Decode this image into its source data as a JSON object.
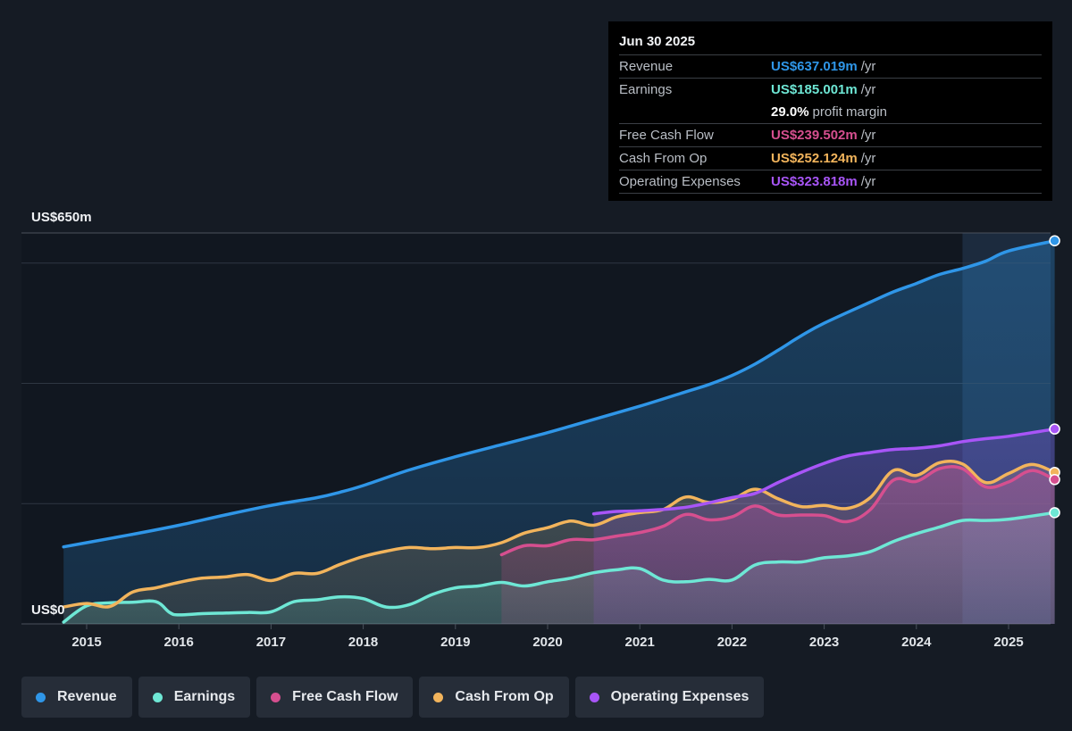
{
  "tooltip": {
    "date": "Jun 30 2025",
    "rows": [
      {
        "label": "Revenue",
        "value": "US$637.019m",
        "unit": "/yr",
        "color": "#2f96e8"
      },
      {
        "label": "Earnings",
        "value": "US$185.001m",
        "unit": "/yr",
        "color": "#6ee7d5"
      },
      {
        "label": "",
        "value": "29.0%",
        "unit": "profit margin",
        "color": "#ffffff"
      },
      {
        "label": "Free Cash Flow",
        "value": "US$239.502m",
        "unit": "/yr",
        "color": "#d64f8f"
      },
      {
        "label": "Cash From Op",
        "value": "US$252.124m",
        "unit": "/yr",
        "color": "#f2b45c"
      },
      {
        "label": "Operating Expenses",
        "value": "US$323.818m",
        "unit": "/yr",
        "color": "#a855f7"
      }
    ]
  },
  "legend": [
    {
      "label": "Revenue",
      "color": "#2f96e8"
    },
    {
      "label": "Earnings",
      "color": "#6ee7d5"
    },
    {
      "label": "Free Cash Flow",
      "color": "#d64f8f"
    },
    {
      "label": "Cash From Op",
      "color": "#f2b45c"
    },
    {
      "label": "Operating Expenses",
      "color": "#a855f7"
    }
  ],
  "chart_data": {
    "type": "area",
    "ylabel_top": "US$650m",
    "ylabel_bottom": "US$0",
    "ylim": [
      0,
      650
    ],
    "xlim": [
      2014.4,
      2025.5
    ],
    "xticks": [
      "2015",
      "2016",
      "2017",
      "2018",
      "2019",
      "2020",
      "2021",
      "2022",
      "2023",
      "2024",
      "2025"
    ],
    "forecast_start": 2024.5,
    "series": [
      {
        "name": "Revenue",
        "color": "#2f96e8",
        "points": [
          [
            2014.75,
            128
          ],
          [
            2015.0,
            135
          ],
          [
            2015.5,
            149
          ],
          [
            2016.0,
            164
          ],
          [
            2016.5,
            181
          ],
          [
            2017.0,
            197
          ],
          [
            2017.5,
            210
          ],
          [
            2017.75,
            219
          ],
          [
            2018.0,
            230
          ],
          [
            2018.5,
            256
          ],
          [
            2019.0,
            278
          ],
          [
            2019.5,
            298
          ],
          [
            2020.0,
            318
          ],
          [
            2020.5,
            340
          ],
          [
            2021.0,
            362
          ],
          [
            2021.5,
            386
          ],
          [
            2021.75,
            398
          ],
          [
            2022.0,
            413
          ],
          [
            2022.25,
            432
          ],
          [
            2022.5,
            455
          ],
          [
            2022.75,
            479
          ],
          [
            2023.0,
            500
          ],
          [
            2023.5,
            535
          ],
          [
            2023.75,
            552
          ],
          [
            2024.0,
            566
          ],
          [
            2024.25,
            581
          ],
          [
            2024.5,
            591
          ],
          [
            2024.75,
            603
          ],
          [
            2025.0,
            620
          ],
          [
            2025.5,
            637
          ]
        ]
      },
      {
        "name": "Earnings",
        "color": "#6ee7d5",
        "points": [
          [
            2014.75,
            3
          ],
          [
            2015.0,
            30
          ],
          [
            2015.25,
            35
          ],
          [
            2015.5,
            36
          ],
          [
            2015.75,
            37
          ],
          [
            2015.9,
            19
          ],
          [
            2016.0,
            15
          ],
          [
            2016.25,
            17
          ],
          [
            2016.5,
            18
          ],
          [
            2016.75,
            19
          ],
          [
            2017.0,
            20
          ],
          [
            2017.25,
            37
          ],
          [
            2017.5,
            40
          ],
          [
            2017.75,
            45
          ],
          [
            2018.0,
            42
          ],
          [
            2018.25,
            28
          ],
          [
            2018.5,
            32
          ],
          [
            2018.75,
            49
          ],
          [
            2019.0,
            60
          ],
          [
            2019.25,
            63
          ],
          [
            2019.5,
            69
          ],
          [
            2019.75,
            63
          ],
          [
            2020.0,
            70
          ],
          [
            2020.25,
            76
          ],
          [
            2020.5,
            85
          ],
          [
            2020.75,
            90
          ],
          [
            2021.0,
            92
          ],
          [
            2021.25,
            73
          ],
          [
            2021.5,
            70
          ],
          [
            2021.75,
            74
          ],
          [
            2022.0,
            73
          ],
          [
            2022.25,
            98
          ],
          [
            2022.5,
            103
          ],
          [
            2022.75,
            103
          ],
          [
            2023.0,
            110
          ],
          [
            2023.25,
            113
          ],
          [
            2023.5,
            120
          ],
          [
            2023.75,
            137
          ],
          [
            2024.0,
            150
          ],
          [
            2024.25,
            161
          ],
          [
            2024.5,
            172
          ],
          [
            2024.75,
            172
          ],
          [
            2025.0,
            174
          ],
          [
            2025.5,
            185
          ]
        ]
      },
      {
        "name": "Cash From Op",
        "color": "#f2b45c",
        "points": [
          [
            2014.75,
            28
          ],
          [
            2015.0,
            34
          ],
          [
            2015.25,
            29
          ],
          [
            2015.5,
            53
          ],
          [
            2015.75,
            60
          ],
          [
            2016.0,
            69
          ],
          [
            2016.25,
            76
          ],
          [
            2016.5,
            78
          ],
          [
            2016.75,
            82
          ],
          [
            2017.0,
            72
          ],
          [
            2017.25,
            84
          ],
          [
            2017.5,
            84
          ],
          [
            2017.75,
            99
          ],
          [
            2018.0,
            112
          ],
          [
            2018.25,
            121
          ],
          [
            2018.5,
            127
          ],
          [
            2018.75,
            125
          ],
          [
            2019.0,
            127
          ],
          [
            2019.25,
            127
          ],
          [
            2019.5,
            135
          ],
          [
            2019.75,
            151
          ],
          [
            2020.0,
            160
          ],
          [
            2020.25,
            171
          ],
          [
            2020.5,
            164
          ],
          [
            2020.75,
            178
          ],
          [
            2021.0,
            185
          ],
          [
            2021.25,
            190
          ],
          [
            2021.5,
            211
          ],
          [
            2021.75,
            202
          ],
          [
            2022.0,
            207
          ],
          [
            2022.25,
            224
          ],
          [
            2022.5,
            208
          ],
          [
            2022.75,
            195
          ],
          [
            2023.0,
            197
          ],
          [
            2023.25,
            192
          ],
          [
            2023.5,
            210
          ],
          [
            2023.75,
            255
          ],
          [
            2024.0,
            247
          ],
          [
            2024.25,
            268
          ],
          [
            2024.5,
            266
          ],
          [
            2024.75,
            235
          ],
          [
            2025.0,
            250
          ],
          [
            2025.25,
            265
          ],
          [
            2025.5,
            252
          ]
        ]
      },
      {
        "name": "Free Cash Flow",
        "color": "#d64f8f",
        "points": [
          [
            2019.5,
            115
          ],
          [
            2019.75,
            130
          ],
          [
            2020.0,
            130
          ],
          [
            2020.25,
            140
          ],
          [
            2020.5,
            140
          ],
          [
            2020.75,
            146
          ],
          [
            2021.0,
            152
          ],
          [
            2021.25,
            162
          ],
          [
            2021.5,
            182
          ],
          [
            2021.75,
            173
          ],
          [
            2022.0,
            178
          ],
          [
            2022.25,
            196
          ],
          [
            2022.5,
            181
          ],
          [
            2022.75,
            181
          ],
          [
            2023.0,
            180
          ],
          [
            2023.25,
            170
          ],
          [
            2023.5,
            190
          ],
          [
            2023.75,
            239
          ],
          [
            2024.0,
            237
          ],
          [
            2024.25,
            258
          ],
          [
            2024.5,
            258
          ],
          [
            2024.75,
            228
          ],
          [
            2025.0,
            236
          ],
          [
            2025.25,
            255
          ],
          [
            2025.5,
            240
          ]
        ]
      },
      {
        "name": "Operating Expenses",
        "color": "#a855f7",
        "points": [
          [
            2020.5,
            183
          ],
          [
            2020.75,
            187
          ],
          [
            2021.0,
            188
          ],
          [
            2021.5,
            194
          ],
          [
            2022.0,
            210
          ],
          [
            2022.25,
            217
          ],
          [
            2022.5,
            235
          ],
          [
            2022.75,
            252
          ],
          [
            2023.0,
            267
          ],
          [
            2023.25,
            279
          ],
          [
            2023.5,
            285
          ],
          [
            2023.75,
            290
          ],
          [
            2024.0,
            292
          ],
          [
            2024.25,
            296
          ],
          [
            2024.5,
            303
          ],
          [
            2024.75,
            308
          ],
          [
            2025.0,
            312
          ],
          [
            2025.5,
            324
          ]
        ]
      }
    ]
  }
}
